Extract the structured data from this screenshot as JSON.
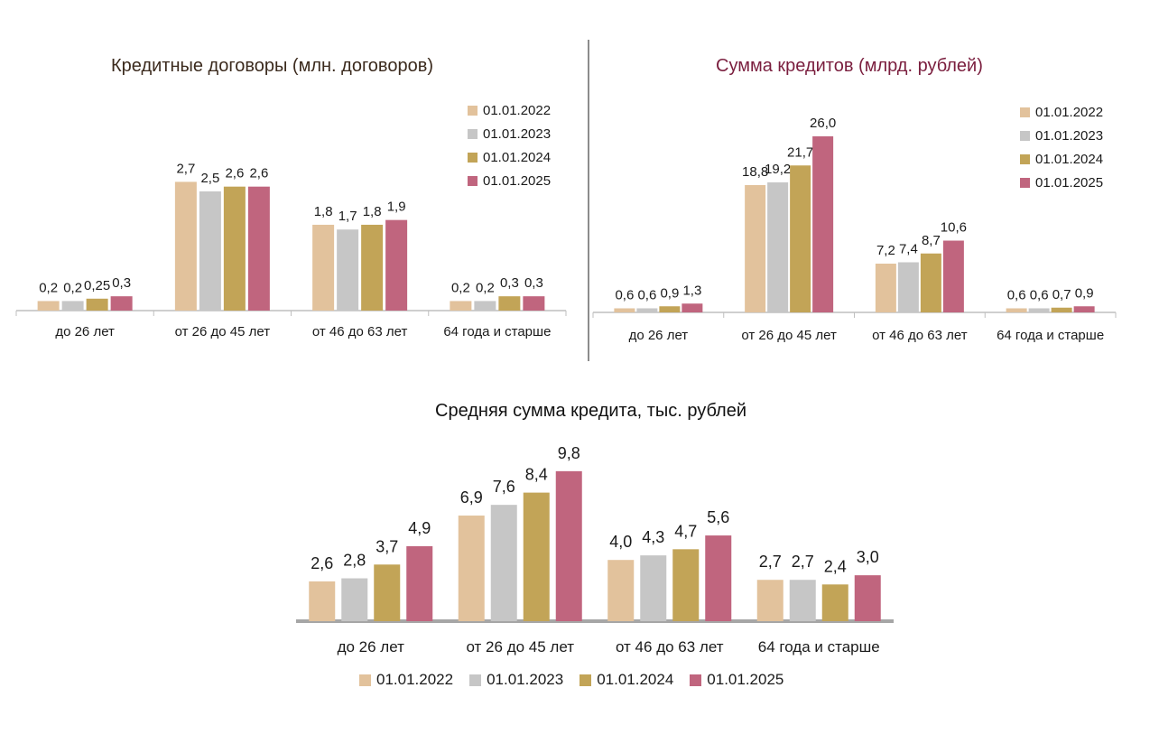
{
  "colors": {
    "01.01.2022": "#e2c29c",
    "01.01.2023": "#c6c6c6",
    "01.01.2024": "#c2a457",
    "01.01.2025": "#c0657e"
  },
  "chart_data": [
    {
      "type": "bar",
      "title": "Кредитные договоры (млн. договоров)",
      "categories": [
        "до 26 лет",
        "от 26 до 45 лет",
        "от 46 до 63 лет",
        "64 года и старше"
      ],
      "series": [
        {
          "name": "01.01.2022",
          "values": [
            0.2,
            2.7,
            1.8,
            0.2
          ],
          "labels": [
            "0,2",
            "2,7",
            "1,8",
            "0,2"
          ]
        },
        {
          "name": "01.01.2023",
          "values": [
            0.2,
            2.5,
            1.7,
            0.2
          ],
          "labels": [
            "0,2",
            "2,5",
            "1,7",
            "0,2"
          ]
        },
        {
          "name": "01.01.2024",
          "values": [
            0.25,
            2.6,
            1.8,
            0.3
          ],
          "labels": [
            "0,25",
            "2,6",
            "1,8",
            "0,3"
          ]
        },
        {
          "name": "01.01.2025",
          "values": [
            0.3,
            2.6,
            1.9,
            0.3
          ],
          "labels": [
            "0,3",
            "2,6",
            "1,9",
            "0,3"
          ]
        }
      ],
      "ylim": [
        0,
        3.2
      ],
      "legend": "right"
    },
    {
      "type": "bar",
      "title": "Сумма кредитов (млрд. рублей)",
      "categories": [
        "до 26 лет",
        "от 26 до 45 лет",
        "от 46 до 63 лет",
        "64 года и старше"
      ],
      "series": [
        {
          "name": "01.01.2022",
          "values": [
            0.6,
            18.8,
            7.2,
            0.6
          ],
          "labels": [
            "0,6",
            "18,8",
            "7,2",
            "0,6"
          ]
        },
        {
          "name": "01.01.2023",
          "values": [
            0.6,
            19.2,
            7.4,
            0.6
          ],
          "labels": [
            "0,6",
            "19,2",
            "7,4",
            "0,6"
          ]
        },
        {
          "name": "01.01.2024",
          "values": [
            0.9,
            21.7,
            8.7,
            0.7
          ],
          "labels": [
            "0,9",
            "21,7",
            "8,7",
            "0,7"
          ]
        },
        {
          "name": "01.01.2025",
          "values": [
            1.3,
            26.0,
            10.6,
            0.9
          ],
          "labels": [
            "1,3",
            "26,0",
            "10,6",
            "0,9"
          ]
        }
      ],
      "ylim": [
        0,
        28
      ],
      "legend": "right"
    },
    {
      "type": "bar",
      "title": "Средняя сумма кредита, тыс. рублей",
      "categories": [
        "до 26 лет",
        "от 26 до 45 лет",
        "от 46 до 63 лет",
        "64 года и старше"
      ],
      "series": [
        {
          "name": "01.01.2022",
          "values": [
            2.6,
            6.9,
            4.0,
            2.7
          ],
          "labels": [
            "2,6",
            "6,9",
            "4,0",
            "2,7"
          ]
        },
        {
          "name": "01.01.2023",
          "values": [
            2.8,
            7.6,
            4.3,
            2.7
          ],
          "labels": [
            "2,8",
            "7,6",
            "4,3",
            "2,7"
          ]
        },
        {
          "name": "01.01.2024",
          "values": [
            3.7,
            8.4,
            4.7,
            2.4
          ],
          "labels": [
            "3,7",
            "8,4",
            "4,7",
            "2,4"
          ]
        },
        {
          "name": "01.01.2025",
          "values": [
            4.9,
            9.8,
            5.6,
            3.0
          ],
          "labels": [
            "4,9",
            "9,8",
            "5,6",
            "3,0"
          ]
        }
      ],
      "ylim": [
        0,
        10.5
      ],
      "legend": "bottom"
    }
  ]
}
